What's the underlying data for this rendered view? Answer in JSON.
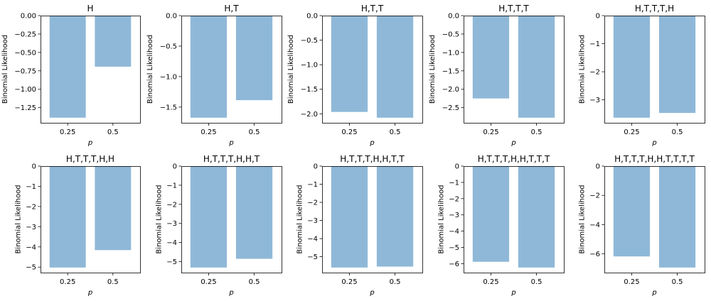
{
  "figure": {
    "bar_color": "#8fb8d8",
    "axis_color": "#000000",
    "background": "#ffffff"
  },
  "chart_data": [
    {
      "type": "bar",
      "title": "H",
      "categories": [
        "0.25",
        "0.5"
      ],
      "values": [
        -1.3863,
        -0.6931
      ],
      "xlabel": "p",
      "ylabel": "Binomial Likelihood",
      "ylim": [
        -1.4556,
        0
      ],
      "yticks": [
        0,
        -0.25,
        -0.5,
        -0.75,
        -1.0,
        -1.25
      ],
      "ytick_labels": [
        "0.00",
        "−0.25",
        "−0.50",
        "−0.75",
        "−1.00",
        "−1.25"
      ]
    },
    {
      "type": "bar",
      "title": "H,T",
      "categories": [
        "0.25",
        "0.5"
      ],
      "values": [
        -1.674,
        -1.3863
      ],
      "xlabel": "p",
      "ylabel": "Binomial Likelihood",
      "ylim": [
        -1.7577,
        0
      ],
      "yticks": [
        0,
        -0.5,
        -1.0,
        -1.5
      ],
      "ytick_labels": [
        "0.0",
        "−0.5",
        "−1.0",
        "−1.5"
      ]
    },
    {
      "type": "bar",
      "title": "H,T,T",
      "categories": [
        "0.25",
        "0.5"
      ],
      "values": [
        -1.9617,
        -2.0794
      ],
      "xlabel": "p",
      "ylabel": "Binomial Likelihood",
      "ylim": [
        -2.1834,
        0
      ],
      "yticks": [
        0,
        -0.5,
        -1.0,
        -1.5,
        -2.0
      ],
      "ytick_labels": [
        "0.0",
        "−0.5",
        "−1.0",
        "−1.5",
        "−2.0"
      ]
    },
    {
      "type": "bar",
      "title": "H,T,T,T",
      "categories": [
        "0.25",
        "0.5"
      ],
      "values": [
        -2.2493,
        -2.7726
      ],
      "xlabel": "p",
      "ylabel": "Binomial Likelihood",
      "ylim": [
        -2.9112,
        0
      ],
      "yticks": [
        0,
        -0.5,
        -1.0,
        -1.5,
        -2.0,
        -2.5
      ],
      "ytick_labels": [
        "0.0",
        "−0.5",
        "−1.0",
        "−1.5",
        "−2.0",
        "−2.5"
      ]
    },
    {
      "type": "bar",
      "title": "H,T,T,T,H",
      "categories": [
        "0.25",
        "0.5"
      ],
      "values": [
        -3.6356,
        -3.4657
      ],
      "xlabel": "p",
      "ylabel": "Binomial Likelihood",
      "ylim": [
        -3.8174,
        0
      ],
      "yticks": [
        0,
        -1,
        -2,
        -3
      ],
      "ytick_labels": [
        "0",
        "−1",
        "−2",
        "−3"
      ]
    },
    {
      "type": "bar",
      "title": "H,T,T,T,H,H",
      "categories": [
        "0.25",
        "0.5"
      ],
      "values": [
        -5.0218,
        -4.1589
      ],
      "xlabel": "p",
      "ylabel": "Binomial Likelihood",
      "ylim": [
        -5.2729,
        0
      ],
      "yticks": [
        0,
        -1,
        -2,
        -3,
        -4,
        -5
      ],
      "ytick_labels": [
        "0",
        "−1",
        "−2",
        "−3",
        "−4",
        "−5"
      ]
    },
    {
      "type": "bar",
      "title": "H,T,T,T,H,H,T",
      "categories": [
        "0.25",
        "0.5"
      ],
      "values": [
        -5.3095,
        -4.852
      ],
      "xlabel": "p",
      "ylabel": "Binomial Likelihood",
      "ylim": [
        -5.575,
        0
      ],
      "yticks": [
        0,
        -1,
        -2,
        -3,
        -4,
        -5
      ],
      "ytick_labels": [
        "0",
        "−1",
        "−2",
        "−3",
        "−4",
        "−5"
      ]
    },
    {
      "type": "bar",
      "title": "H,T,T,T,H,H,T,T",
      "categories": [
        "0.25",
        "0.5"
      ],
      "values": [
        -5.5972,
        -5.5452
      ],
      "xlabel": "p",
      "ylabel": "Binomial Likelihood",
      "ylim": [
        -5.8771,
        0
      ],
      "yticks": [
        0,
        -1,
        -2,
        -3,
        -4,
        -5
      ],
      "ytick_labels": [
        "0",
        "−1",
        "−2",
        "−3",
        "−4",
        "−5"
      ]
    },
    {
      "type": "bar",
      "title": "H,T,T,T,H,H,T,T,T",
      "categories": [
        "0.25",
        "0.5"
      ],
      "values": [
        -5.8848,
        -6.2383
      ],
      "xlabel": "p",
      "ylabel": "Binomial Likelihood",
      "ylim": [
        -6.5502,
        0
      ],
      "yticks": [
        0,
        -1,
        -2,
        -3,
        -4,
        -5,
        -6
      ],
      "ytick_labels": [
        "0",
        "−1",
        "−2",
        "−3",
        "−4",
        "−5",
        "−6"
      ]
    },
    {
      "type": "bar",
      "title": "H,T,T,T,H,H,T,T,T,T",
      "categories": [
        "0.25",
        "0.5"
      ],
      "values": [
        -6.1725,
        -6.9315
      ],
      "xlabel": "p",
      "ylabel": "Binomial Likelihood",
      "ylim": [
        -7.2781,
        0
      ],
      "yticks": [
        0,
        -2,
        -4,
        -6
      ],
      "ytick_labels": [
        "0",
        "−2",
        "−4",
        "−6"
      ]
    }
  ]
}
